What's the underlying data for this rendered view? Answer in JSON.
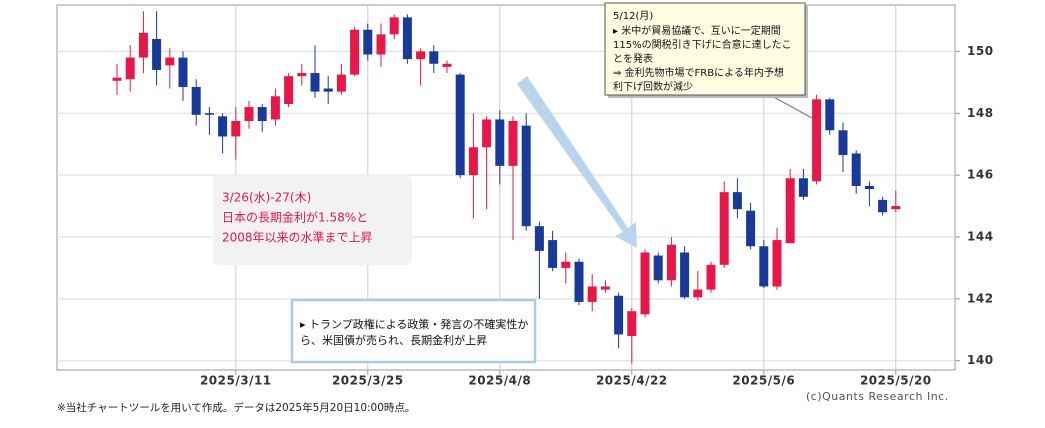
{
  "chart_data": {
    "type": "candlestick",
    "x": [
      null,
      null,
      null,
      null,
      null,
      null,
      null,
      null,
      null,
      "2025/3/11",
      null,
      null,
      null,
      null,
      null,
      null,
      null,
      null,
      null,
      "2025/3/25",
      null,
      null,
      null,
      null,
      null,
      null,
      null,
      null,
      null,
      "2025/4/8",
      null,
      null,
      null,
      null,
      null,
      null,
      null,
      null,
      null,
      "2025/4/22",
      null,
      null,
      null,
      null,
      null,
      null,
      null,
      null,
      null,
      "2025/5/6",
      null,
      null,
      null,
      null,
      null,
      null,
      null,
      null,
      null,
      "2025/5/20"
    ],
    "open": [
      149.05,
      149.1,
      149.8,
      150.4,
      149.55,
      149.8,
      148.85,
      148.0,
      147.9,
      147.25,
      147.75,
      148.2,
      147.8,
      148.3,
      149.2,
      149.3,
      148.8,
      148.7,
      149.25,
      150.7,
      149.9,
      150.55,
      151.1,
      149.75,
      150.0,
      149.5,
      149.25,
      146.0,
      146.9,
      147.8,
      146.3,
      147.6,
      144.35,
      143.9,
      143.0,
      143.2,
      141.9,
      142.3,
      142.1,
      140.8,
      141.5,
      143.4,
      142.6,
      143.5,
      142.05,
      142.3,
      143.1,
      145.45,
      144.85,
      143.7,
      142.4,
      143.8,
      145.9,
      145.8,
      148.45,
      147.45,
      146.7,
      145.65,
      145.2,
      144.9
    ],
    "high": [
      149.6,
      150.2,
      151.3,
      151.3,
      150.1,
      150.0,
      149.1,
      148.2,
      148.0,
      148.2,
      148.4,
      148.3,
      148.8,
      149.3,
      149.6,
      150.2,
      149.2,
      149.6,
      150.8,
      150.9,
      150.9,
      151.2,
      151.2,
      150.1,
      150.2,
      149.7,
      149.3,
      148.0,
      147.9,
      148.1,
      147.9,
      148.0,
      144.5,
      144.2,
      143.5,
      143.3,
      142.8,
      142.6,
      142.2,
      141.7,
      143.6,
      143.5,
      144.0,
      143.7,
      142.9,
      143.2,
      145.8,
      145.9,
      145.1,
      143.9,
      144.3,
      146.2,
      146.2,
      148.6,
      148.5,
      147.7,
      146.8,
      145.8,
      145.3,
      145.5
    ],
    "low": [
      148.6,
      148.7,
      149.3,
      148.9,
      148.8,
      148.4,
      147.6,
      147.3,
      146.7,
      146.5,
      147.5,
      147.4,
      147.6,
      148.2,
      148.9,
      148.5,
      148.3,
      148.6,
      149.2,
      149.7,
      149.5,
      150.4,
      149.6,
      148.9,
      149.3,
      149.3,
      145.9,
      144.6,
      144.9,
      145.7,
      143.9,
      144.2,
      142.0,
      142.9,
      142.5,
      141.8,
      141.6,
      142.2,
      140.4,
      139.9,
      141.4,
      142.5,
      142.4,
      142.0,
      141.95,
      142.2,
      143.0,
      144.6,
      143.6,
      142.35,
      142.3,
      143.8,
      145.2,
      145.7,
      147.3,
      146.1,
      145.4,
      145.0,
      144.7,
      144.8
    ],
    "close": [
      149.15,
      149.8,
      150.6,
      149.4,
      149.8,
      148.85,
      147.95,
      147.95,
      147.25,
      147.75,
      148.2,
      147.75,
      148.55,
      149.2,
      149.3,
      148.7,
      148.7,
      149.25,
      150.7,
      149.9,
      150.55,
      151.1,
      149.75,
      150.0,
      149.6,
      149.6,
      146.0,
      146.9,
      147.8,
      146.3,
      147.75,
      144.35,
      143.55,
      143.0,
      143.2,
      141.9,
      142.4,
      142.4,
      140.85,
      141.6,
      143.5,
      142.6,
      143.75,
      142.05,
      142.3,
      143.1,
      145.45,
      144.9,
      143.7,
      142.4,
      143.9,
      145.9,
      145.3,
      148.45,
      147.45,
      146.65,
      145.65,
      145.55,
      144.8,
      145.0
    ],
    "up_color": "#e8174a",
    "down_color": "#1a3a9a",
    "ylim": [
      139.7,
      151.5
    ],
    "yticks": [
      140,
      142,
      144,
      146,
      148,
      150
    ],
    "grid": true,
    "annotations": [
      {
        "lines": [
          "3/26(水)-27(木)",
          "日本の長期金利が1.58%と",
          "2008年以来の水準まで上昇"
        ]
      },
      {
        "lines": [
          "▸ トランプ政権による政策・発言の不確実性か",
          "ら、米国債が売られ、長期金利が上昇"
        ]
      },
      {
        "lines": [
          "5/12(月)",
          "▸  米中が貿易協議で、互いに一定期間",
          "115%の関税引き下げに合意に達したこ",
          "とを発表",
          "⇒  金利先物市場でFRBによる年内予想",
          "利下げ回数が減少"
        ]
      }
    ],
    "footnote": "※当社チャートツールを用いて作成。データは2025年5月20日10:00時点。",
    "credit": "(c)Quants Research Inc."
  }
}
